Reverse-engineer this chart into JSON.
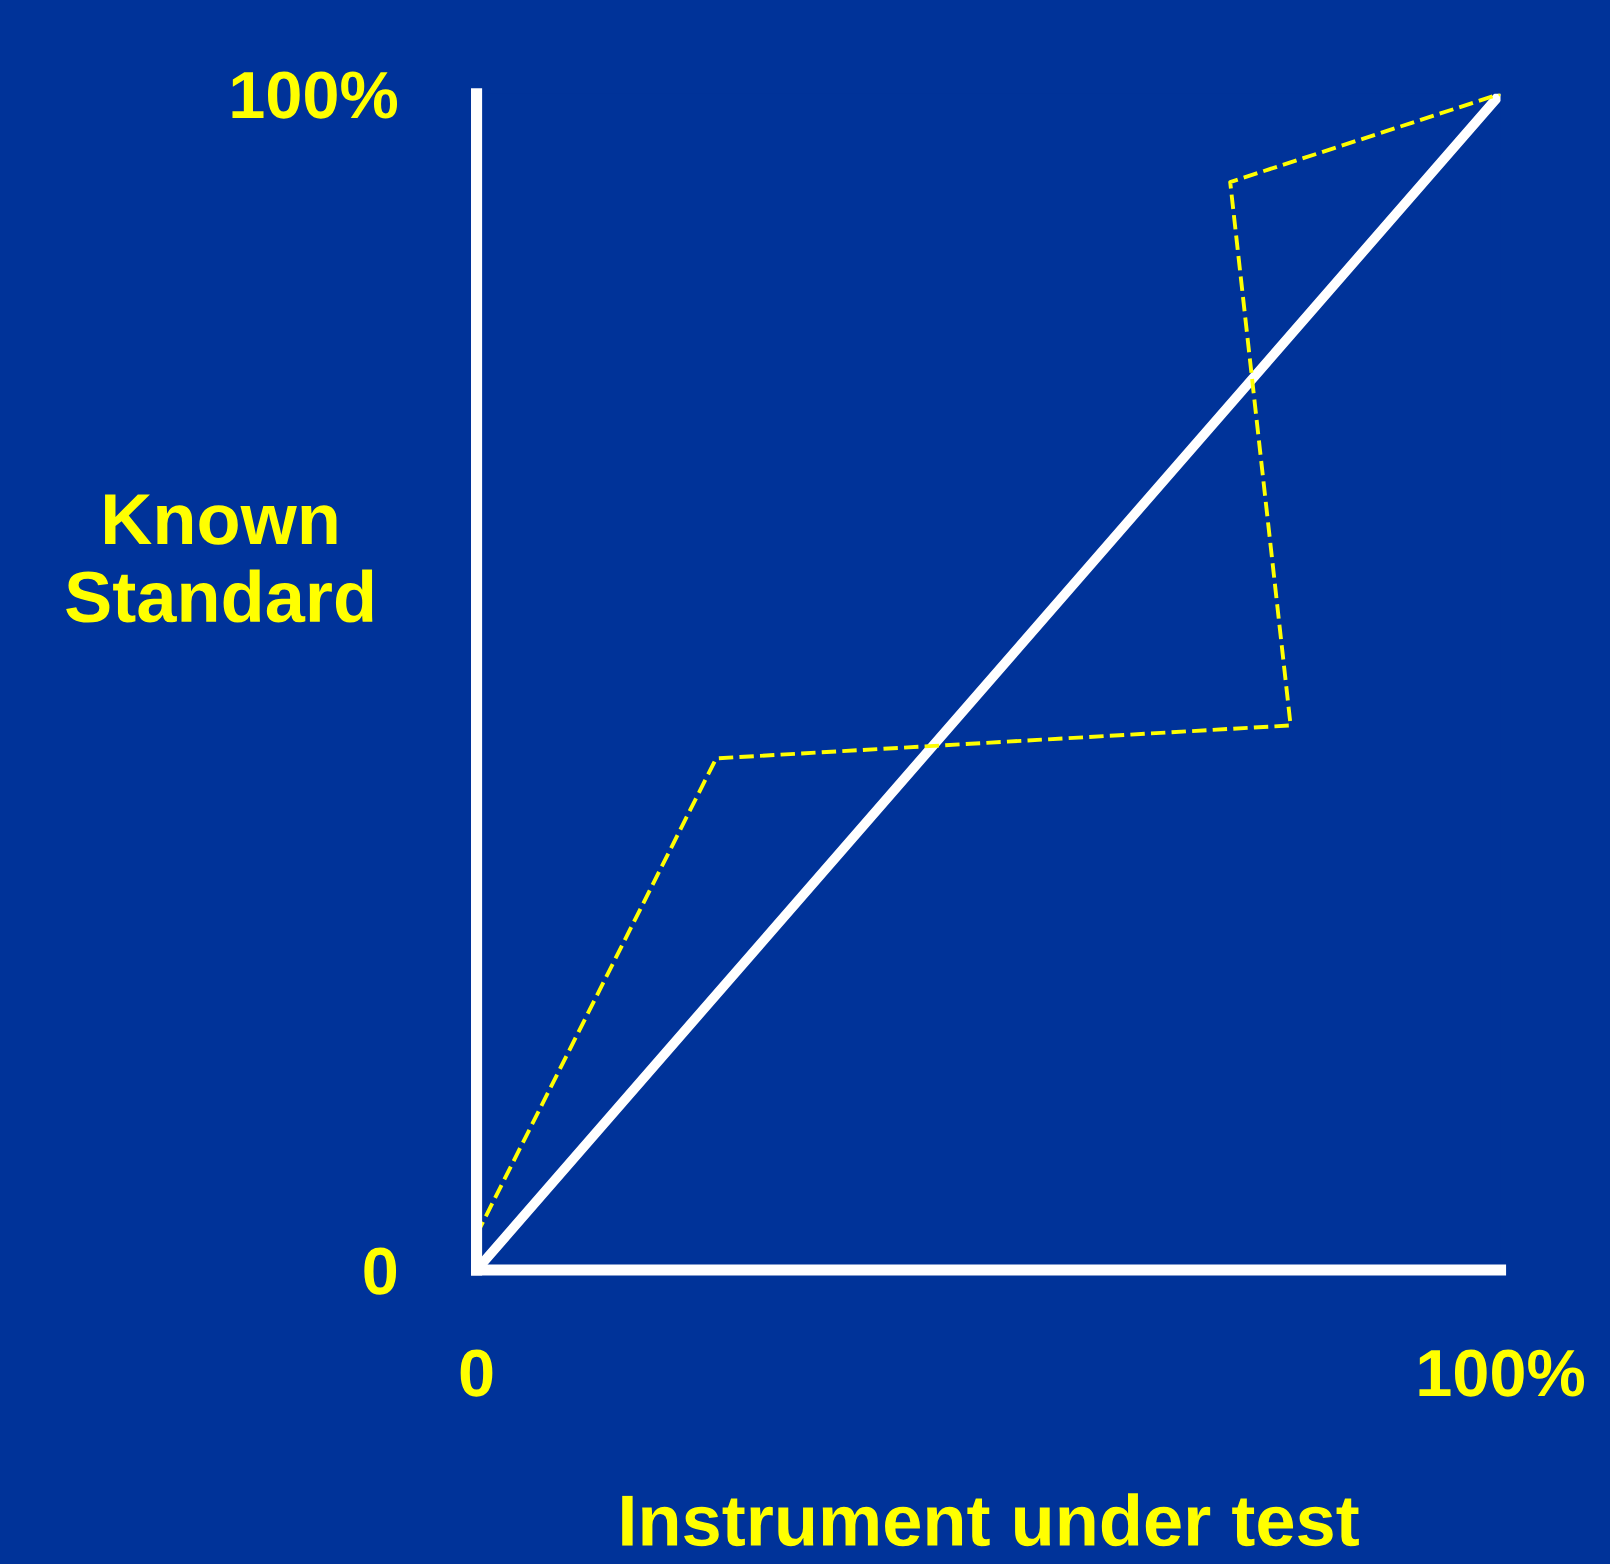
{
  "chart_data": {
    "type": "line",
    "xlabel": "Instrument under test",
    "ylabel": "Known\nStandard",
    "xlim": [
      0,
      100
    ],
    "ylim": [
      0,
      100
    ],
    "xticks": [
      0,
      {
        "value": 100,
        "label": "100%"
      }
    ],
    "yticks": [
      0,
      {
        "value": 100,
        "label": "100%"
      }
    ],
    "grid": false,
    "legend": false,
    "series": [
      {
        "color": "#ffffff",
        "line_style": "solid",
        "x": [
          0,
          100
        ],
        "values": [
          0,
          100
        ]
      },
      {
        "color": "#ffff00",
        "line_style": "dashed",
        "x": [
          0,
          23.4,
          79.5,
          73.6,
          100
        ],
        "values": [
          3,
          43.5,
          46.3,
          92.5,
          100
        ]
      }
    ]
  }
}
